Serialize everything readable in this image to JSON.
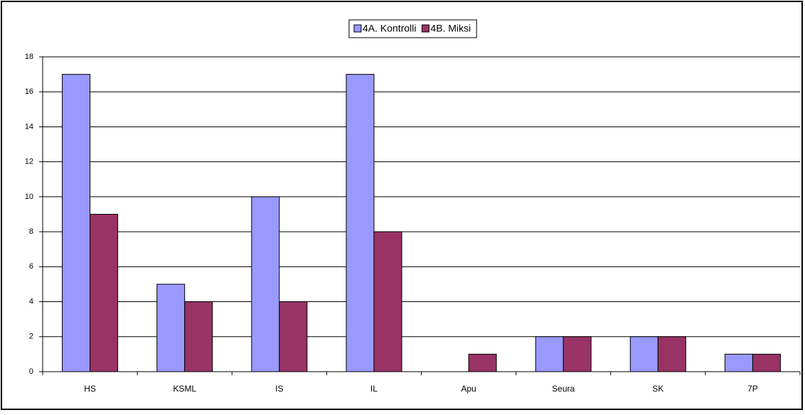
{
  "chart_data": {
    "type": "bar",
    "categories": [
      "HS",
      "KSML",
      "IS",
      "IL",
      "Apu",
      "Seura",
      "SK",
      "7P"
    ],
    "series": [
      {
        "name": "4A. Kontrolli",
        "color": "#9999ff",
        "values": [
          17,
          5,
          10,
          17,
          0,
          2,
          2,
          1
        ]
      },
      {
        "name": "4B. Miksi",
        "color": "#993366",
        "values": [
          9,
          4,
          4,
          8,
          1,
          2,
          2,
          1
        ]
      }
    ],
    "ylim": [
      0,
      18
    ],
    "yticks": [
      0,
      2,
      4,
      6,
      8,
      10,
      12,
      14,
      16,
      18
    ],
    "grid": true,
    "legend": "top"
  }
}
